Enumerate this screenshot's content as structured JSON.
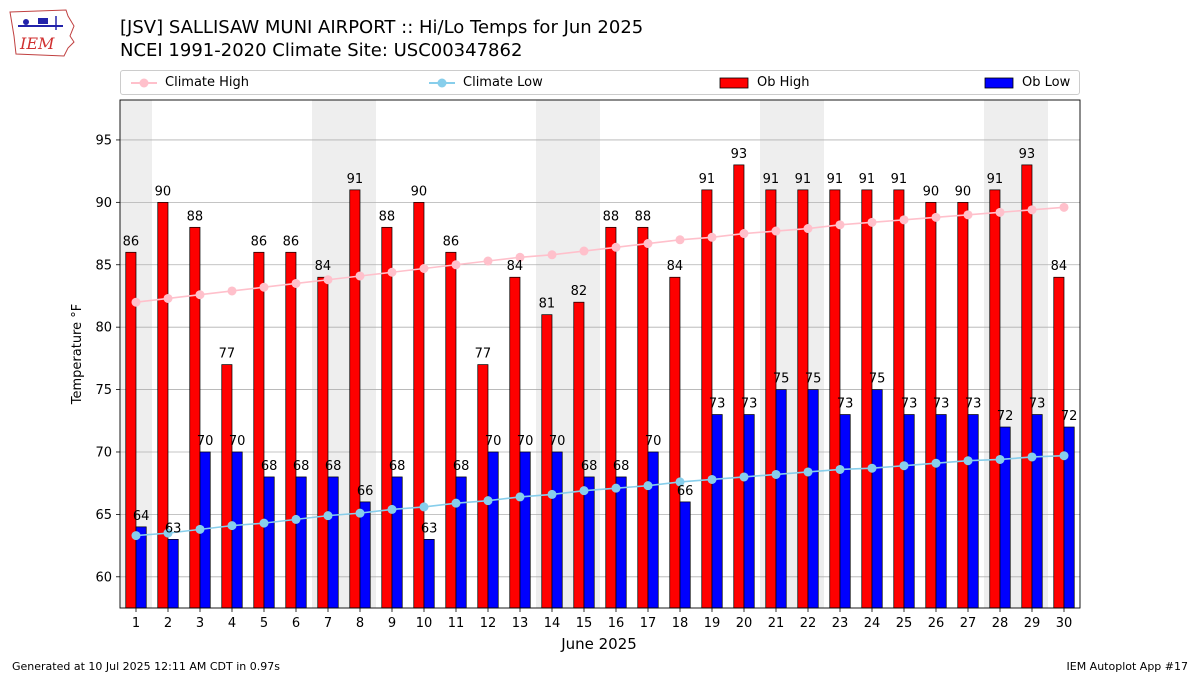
{
  "header": {
    "title_line1": "[JSV] SALLISAW MUNI AIRPORT :: Hi/Lo Temps for Jun 2025",
    "title_line2": "NCEI 1991-2020 Climate Site: USC00347862",
    "logo_text": "IEM"
  },
  "legend": {
    "climate_high": "Climate High",
    "climate_low": "Climate Low",
    "ob_high": "Ob High",
    "ob_low": "Ob Low"
  },
  "colors": {
    "ob_high": "#ff0000",
    "ob_low": "#0000ff",
    "climate_high": "#ffc0cb",
    "climate_low": "#87ceeb",
    "weekend_shade": "#eeeeee",
    "grid": "#b0b0b0"
  },
  "footer": {
    "left": "Generated at 10 Jul 2025 12:11 AM CDT in 0.97s",
    "right": "IEM Autoplot App #17"
  },
  "chart_data": {
    "type": "bar",
    "xlabel": "June 2025",
    "ylabel": "Temperature °F",
    "ylim": [
      57.5,
      98.2
    ],
    "yticks": [
      60,
      65,
      70,
      75,
      80,
      85,
      90,
      95
    ],
    "grid": true,
    "legend_position": "top",
    "categories": [
      "1",
      "2",
      "3",
      "4",
      "5",
      "6",
      "7",
      "8",
      "9",
      "10",
      "11",
      "12",
      "13",
      "14",
      "15",
      "16",
      "17",
      "18",
      "19",
      "20",
      "21",
      "22",
      "23",
      "24",
      "25",
      "26",
      "27",
      "28",
      "29",
      "30"
    ],
    "shaded_days": [
      1,
      7,
      8,
      14,
      15,
      21,
      22,
      28,
      29
    ],
    "series": [
      {
        "name": "Ob High",
        "kind": "bar",
        "values": [
          86,
          90,
          88,
          77,
          86,
          86,
          84,
          91,
          88,
          90,
          86,
          77,
          84,
          81,
          82,
          88,
          88,
          84,
          91,
          93,
          91,
          91,
          91,
          91,
          91,
          90,
          90,
          91,
          93,
          84
        ]
      },
      {
        "name": "Ob Low",
        "kind": "bar",
        "values": [
          64,
          63,
          70,
          70,
          68,
          68,
          68,
          66,
          68,
          63,
          68,
          70,
          70,
          70,
          68,
          68,
          70,
          66,
          73,
          73,
          75,
          75,
          73,
          75,
          73,
          73,
          73,
          72,
          73,
          72
        ]
      },
      {
        "name": "Climate High",
        "kind": "line",
        "values": [
          82.0,
          82.3,
          82.6,
          82.9,
          83.2,
          83.5,
          83.8,
          84.1,
          84.4,
          84.7,
          85.0,
          85.3,
          85.6,
          85.8,
          86.1,
          86.4,
          86.7,
          87.0,
          87.2,
          87.5,
          87.7,
          87.9,
          88.2,
          88.4,
          88.6,
          88.8,
          89.0,
          89.2,
          89.4,
          89.6
        ]
      },
      {
        "name": "Climate Low",
        "kind": "line",
        "values": [
          63.3,
          63.5,
          63.8,
          64.1,
          64.3,
          64.6,
          64.9,
          65.1,
          65.4,
          65.6,
          65.9,
          66.1,
          66.4,
          66.6,
          66.9,
          67.1,
          67.3,
          67.6,
          67.8,
          68.0,
          68.2,
          68.4,
          68.6,
          68.7,
          68.9,
          69.1,
          69.3,
          69.4,
          69.6,
          69.7
        ]
      }
    ]
  }
}
